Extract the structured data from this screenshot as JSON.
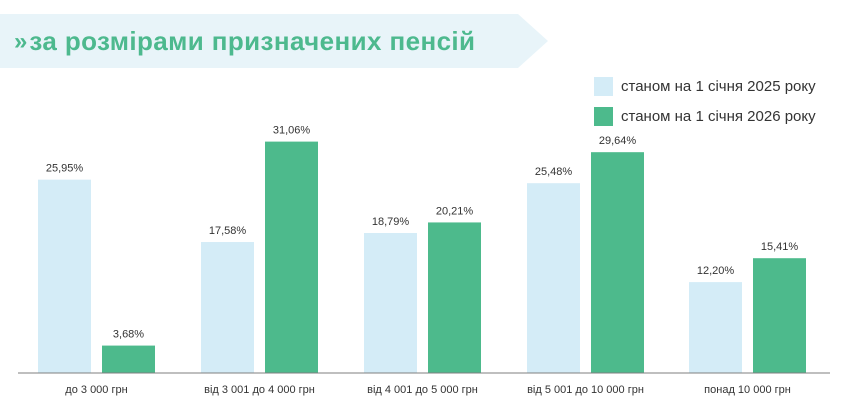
{
  "header": {
    "title": "за розмірами призначених пенсій",
    "chevron": "»"
  },
  "colors": {
    "banner_bg": "#e8f4f9",
    "title": "#4db98e",
    "series_2025": "#d4ecf7",
    "series_2026": "#4dba8c",
    "axis": "#7f7f7f",
    "text": "#333333"
  },
  "chart_data": {
    "type": "bar",
    "title": "",
    "xlabel": "",
    "ylabel": "",
    "ylim": [
      0,
      35
    ],
    "grid": false,
    "legend_position": "top-right",
    "categories": [
      "до 3 000 грн",
      "від 3 001 до 4 000 грн",
      "від 4 001 до 5 000 грн",
      "від 5 001 до 10 000 грн",
      "понад 10 000 грн"
    ],
    "series": [
      {
        "name": "станом на 1 січня 2025 року",
        "values": [
          25.95,
          17.58,
          18.79,
          25.48,
          12.2
        ],
        "labels": [
          "25,95%",
          "17,58%",
          "18,79%",
          "25,48%",
          "12,20%"
        ]
      },
      {
        "name": "станом на 1 січня 2026 року",
        "values": [
          3.68,
          31.06,
          20.21,
          29.64,
          15.41
        ],
        "labels": [
          "3,68%",
          "31,06%",
          "20,21%",
          "29,64%",
          "15,41%"
        ]
      }
    ]
  }
}
